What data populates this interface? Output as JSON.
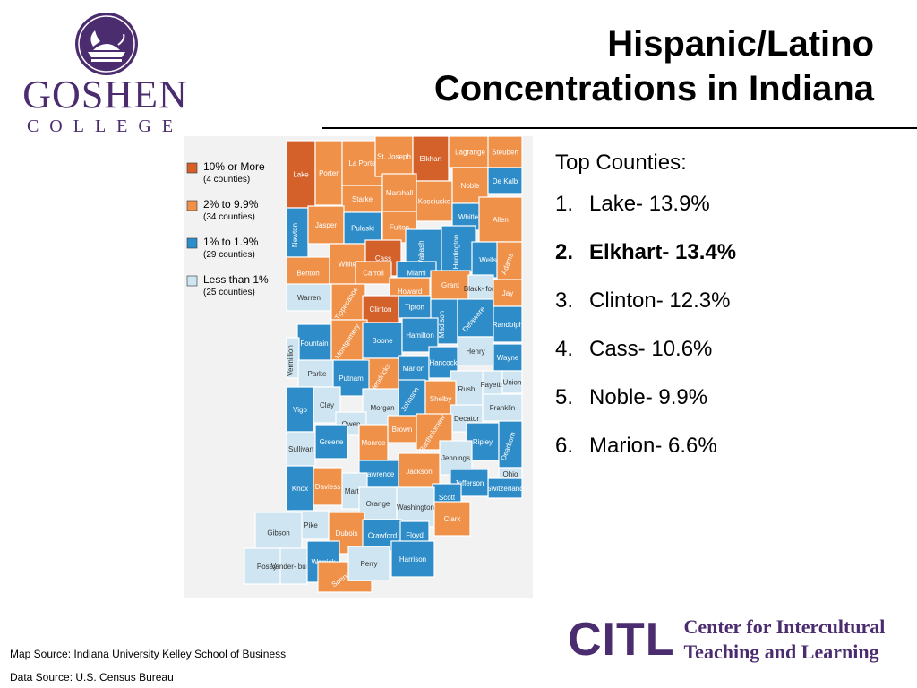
{
  "logo": {
    "wordmark": "GOSHEN",
    "subtext": "COLLEGE",
    "color": "#4b2c6f"
  },
  "slide": {
    "title_line1": "Hispanic/Latino",
    "title_line2": "Concentrations in Indiana"
  },
  "legend": [
    {
      "label": "10% or More",
      "sub": "(4 counties)",
      "color": "#d4602a"
    },
    {
      "label": "2% to 9.9%",
      "sub": "(34 counties)",
      "color": "#f0914a"
    },
    {
      "label": "1% to 1.9%",
      "sub": "(29 counties)",
      "color": "#2e8dc8"
    },
    {
      "label": "Less than 1%",
      "sub": "(25 counties)",
      "color": "#cfe6f2"
    }
  ],
  "counties": {
    "lake": "Lake",
    "porter": "Porter",
    "laporte": "La Porte",
    "stjoseph": "St. Joseph",
    "elkhart": "Elkhart",
    "lagrange": "Lagrange",
    "steuben": "Steuben",
    "starke": "Starke",
    "marshall": "Marshall",
    "kosciusko": "Kosciusko",
    "noble": "Noble",
    "dekalb": "De Kalb",
    "newton": "Newton",
    "jasper": "Jasper",
    "pulaski": "Pulaski",
    "fulton": "Fulton",
    "whitley": "Whitley",
    "allen": "Allen",
    "benton": "Benton",
    "white": "White",
    "cass": "Cass",
    "wabash": "Wabash",
    "huntington": "Huntington",
    "wells": "Wells",
    "adams": "Adams",
    "carroll": "Carroll",
    "miami": "Miami",
    "warren": "Warren",
    "tippecanoe": "Tippecanoe",
    "howard": "Howard",
    "grant": "Grant",
    "blackford": "Black-\nford",
    "jay": "Jay",
    "clinton": "Clinton",
    "tipton": "Tipton",
    "madison": "Madison",
    "delaware": "Delaware",
    "randolph": "Randolph",
    "fountain": "Fountain",
    "montgomery": "Montgomery",
    "boone": "Boone",
    "hamilton": "Hamilton",
    "henry": "Henry",
    "wayne": "Wayne",
    "vermillion": "Vermillion",
    "parke": "Parke",
    "hendricks": "Hendricks",
    "marion": "Marion",
    "hancock": "Hancock",
    "putnam": "Putnam",
    "rush": "Rush",
    "fayette": "Fayette",
    "union": "Union",
    "vigo": "Vigo",
    "clay": "Clay",
    "morgan": "Morgan",
    "johnson": "Johnson",
    "shelby": "Shelby",
    "franklin": "Franklin",
    "owen": "Owen",
    "decatur": "Decatur",
    "brown": "Brown",
    "sullivan": "Sullivan",
    "greene": "Greene",
    "monroe": "Monroe",
    "bartholomew": "Bartholomew",
    "ripley": "Ripley",
    "dearborn": "Dearborn",
    "jennings": "Jennings",
    "ohio": "Ohio",
    "lawrence": "Lawrence",
    "jackson": "Jackson",
    "switzerland": "Switzerland",
    "knox": "Knox",
    "daviess": "Daviess",
    "martin": "Martin",
    "jefferson": "Jefferson",
    "orange": "Orange",
    "scott": "Scott",
    "washington": "Washington",
    "clark": "Clark",
    "pike": "Pike",
    "gibson": "Gibson",
    "dubois": "Dubois",
    "crawford": "Crawford",
    "floyd": "Floyd",
    "posey": "Posey",
    "vanderburgh": "Vander-\nburgh",
    "warrick": "Warrick",
    "spencer": "Spencer",
    "perry": "Perry",
    "harrison": "Harrison"
  },
  "top_counties": {
    "heading": "Top Counties:",
    "items": [
      {
        "num": "1.",
        "text": "Lake- 13.9%"
      },
      {
        "num": "2.",
        "text": "Elkhart- 13.4%"
      },
      {
        "num": "3.",
        "text": "Clinton- 12.3%"
      },
      {
        "num": "4.",
        "text": "Cass- 10.6%"
      },
      {
        "num": "5.",
        "text": "Noble- 9.9%"
      },
      {
        "num": "6.",
        "text": "Marion- 6.6%"
      }
    ]
  },
  "citl": {
    "mark": "CITL",
    "line1": "Center for Intercultural",
    "line2": "Teaching and Learning"
  },
  "sources": {
    "map": "Map Source: Indiana University Kelley School of Business",
    "data": "Data Source: U.S. Census Bureau"
  }
}
